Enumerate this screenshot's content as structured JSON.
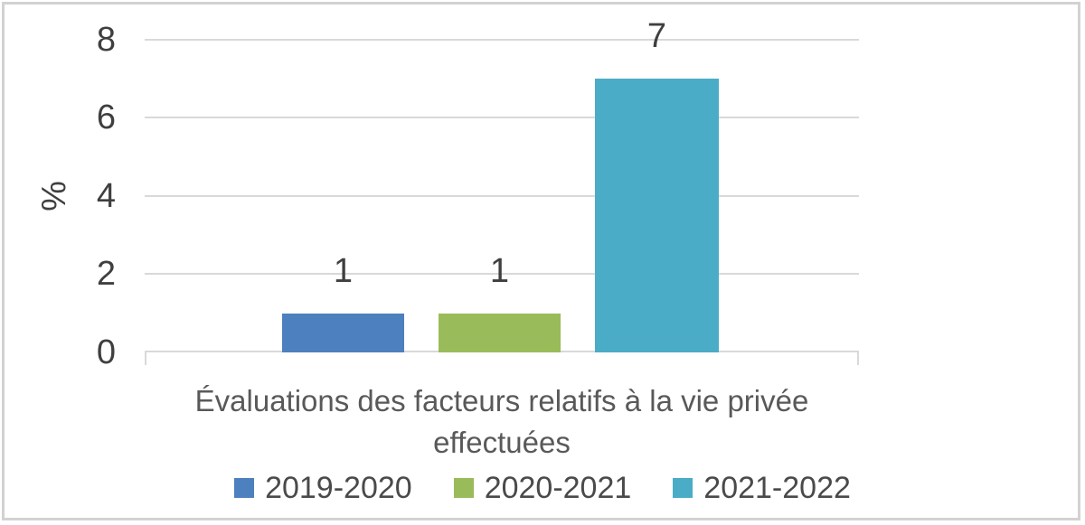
{
  "chart_data": {
    "type": "bar",
    "title": "",
    "ylabel": "%",
    "xlabel": "Évaluations des facteurs relatifs à la vie privée effectuées",
    "xlabel_lines": [
      "Évaluations des facteurs relatifs à la vie privée",
      "effectuées"
    ],
    "categories": [
      "Évaluations des facteurs relatifs à la vie privée effectuées"
    ],
    "series": [
      {
        "name": "2019-2020",
        "values": [
          1
        ],
        "color": "#4d80be"
      },
      {
        "name": "2020-2021",
        "values": [
          1
        ],
        "color": "#9abb59"
      },
      {
        "name": "2021-2022",
        "values": [
          7
        ],
        "color": "#4aacc6"
      }
    ],
    "ylim": [
      0,
      8
    ],
    "yticks": [
      0,
      2,
      4,
      6,
      8
    ],
    "grid": true,
    "legend_position": "bottom",
    "colors": {
      "gridline": "#d9d9d9",
      "tick_text": "#3f3f3f",
      "axis_title_text": "#595959",
      "frame_border": "#d2d2d2"
    }
  }
}
